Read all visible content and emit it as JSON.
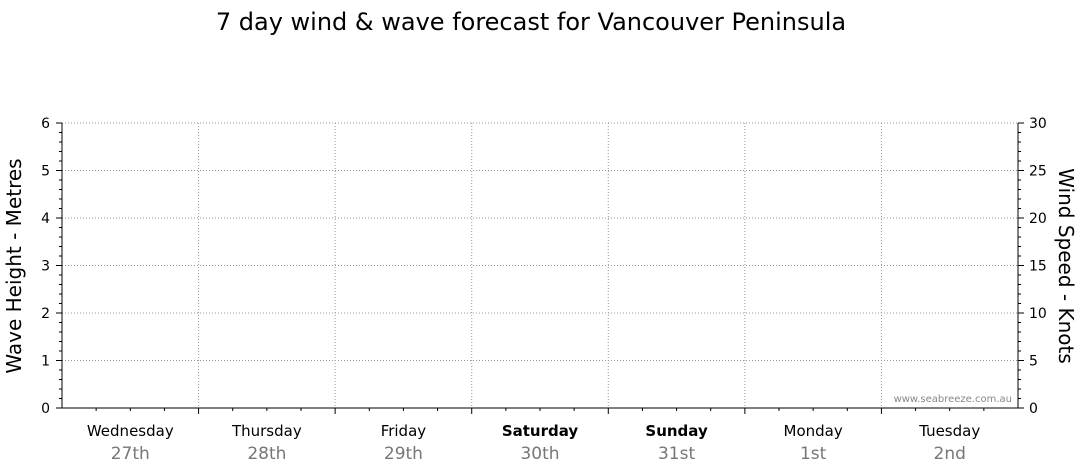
{
  "chart_data": {
    "type": "line",
    "title": "7 day wind & wave forecast for Vancouver Peninsula",
    "left_axis": {
      "label": "Wave Height - Metres",
      "ylim": [
        0,
        6
      ],
      "ticks": [
        "0",
        "1",
        "2",
        "3",
        "4",
        "5",
        "6"
      ]
    },
    "right_axis": {
      "label": "Wind Speed - Knots",
      "ylim": [
        0,
        30
      ],
      "ticks": [
        "0",
        "5",
        "10",
        "15",
        "20",
        "25",
        "30"
      ]
    },
    "grid": true,
    "days": [
      {
        "name": "Wednesday",
        "date": "27th",
        "bold": false
      },
      {
        "name": "Thursday",
        "date": "28th",
        "bold": false
      },
      {
        "name": "Friday",
        "date": "29th",
        "bold": false
      },
      {
        "name": "Saturday",
        "date": "30th",
        "bold": true
      },
      {
        "name": "Sunday",
        "date": "31st",
        "bold": true
      },
      {
        "name": "Monday",
        "date": "1st",
        "bold": false
      },
      {
        "name": "Tuesday",
        "date": "2nd",
        "bold": false
      }
    ],
    "series": [],
    "watermark": "www.seabreeze.com.au"
  },
  "colors": {
    "grid": "#999999",
    "axis": "#000000",
    "date_text": "#777777"
  }
}
